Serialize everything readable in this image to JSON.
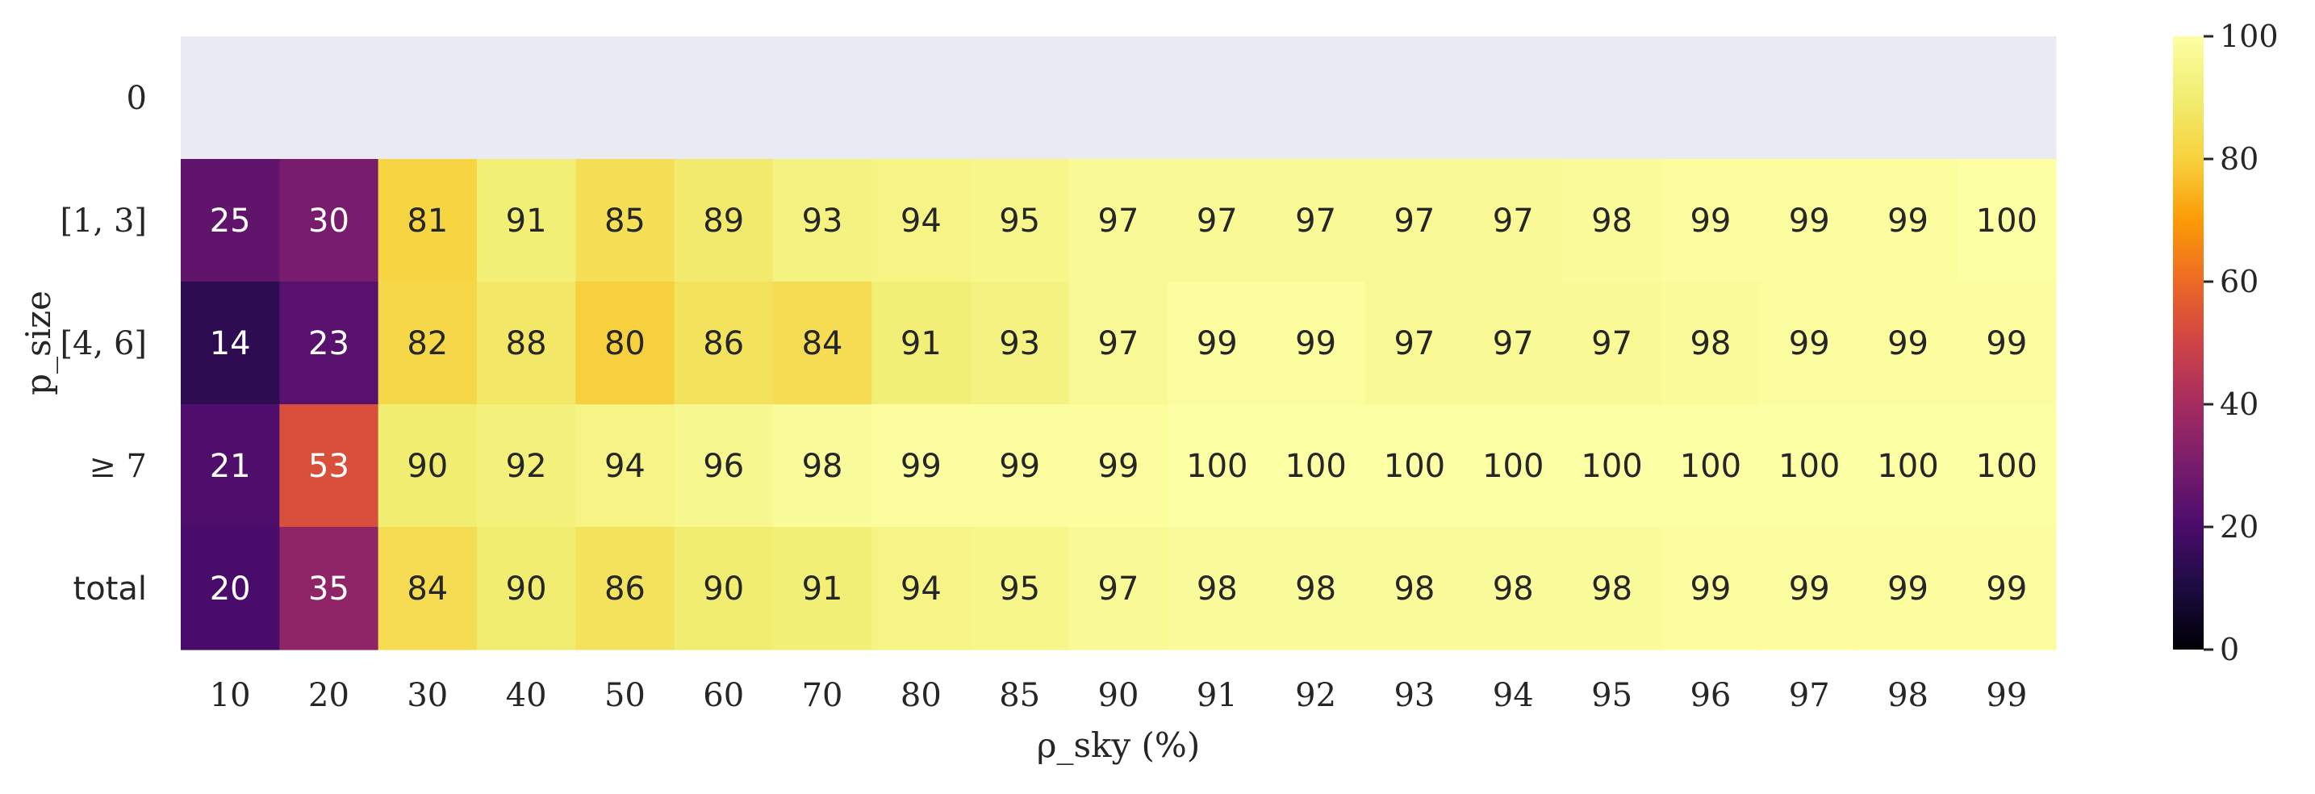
{
  "chart_data": {
    "type": "heatmap",
    "x_categories": [
      "10",
      "20",
      "30",
      "40",
      "50",
      "60",
      "70",
      "80",
      "85",
      "90",
      "91",
      "92",
      "93",
      "94",
      "95",
      "96",
      "97",
      "98",
      "99"
    ],
    "y_categories": [
      "0",
      "[1, 3]",
      "[4, 6]",
      "≥ 7",
      "total"
    ],
    "xlabel": "ρ_sky (%)",
    "ylabel": "p_size",
    "values": [
      [
        null,
        null,
        null,
        null,
        null,
        null,
        null,
        null,
        null,
        null,
        null,
        null,
        null,
        null,
        null,
        null,
        null,
        null,
        null
      ],
      [
        25,
        30,
        81,
        91,
        85,
        89,
        93,
        94,
        95,
        97,
        97,
        97,
        97,
        97,
        98,
        99,
        99,
        99,
        100
      ],
      [
        14,
        23,
        82,
        88,
        80,
        86,
        84,
        91,
        93,
        97,
        99,
        99,
        97,
        97,
        97,
        98,
        99,
        99,
        99
      ],
      [
        21,
        53,
        90,
        92,
        94,
        96,
        98,
        99,
        99,
        99,
        100,
        100,
        100,
        100,
        100,
        100,
        100,
        100,
        100
      ],
      [
        20,
        35,
        84,
        90,
        86,
        90,
        91,
        94,
        95,
        97,
        98,
        98,
        98,
        98,
        98,
        99,
        99,
        99,
        99
      ]
    ],
    "colormap": "inferno",
    "missing_color": "#eaeaf2",
    "colorbar": {
      "min": 0,
      "max": 100,
      "ticks": [
        "0",
        "20",
        "40",
        "60",
        "80",
        "100"
      ]
    }
  }
}
